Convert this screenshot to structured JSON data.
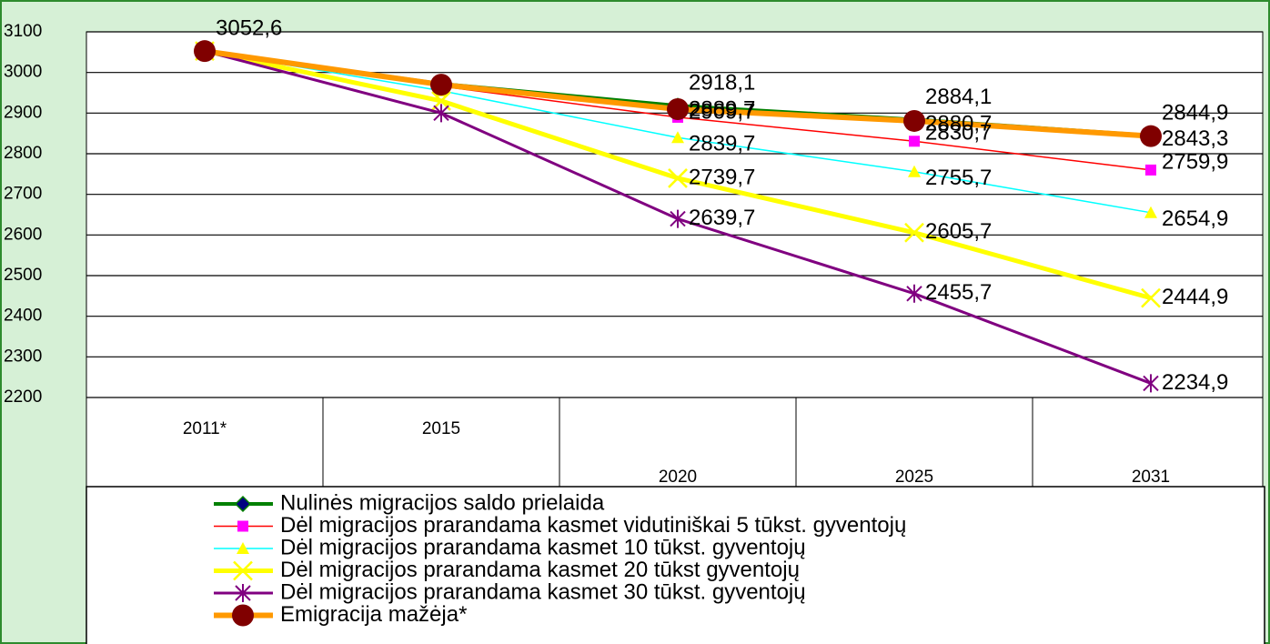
{
  "chart_data": {
    "type": "line",
    "categories": [
      "2011*",
      "2015",
      "2020",
      "2025",
      "2031"
    ],
    "ylim": [
      2200,
      3100
    ],
    "yticks": [
      2200,
      2300,
      2400,
      2500,
      2600,
      2700,
      2800,
      2900,
      3000,
      3100
    ],
    "grid": true,
    "series": [
      {
        "name": "Nulinės migracijos saldo prielaida",
        "color": "#008000",
        "marker": "diamond",
        "marker_color": "#000080",
        "values": [
          3052.6,
          2972,
          2918.1,
          2884.1,
          2844.9
        ],
        "value_labels": [
          "3052,6",
          null,
          "2918,1",
          "2884,1",
          "2844,9"
        ]
      },
      {
        "name": "Dėl migracijos prarandama kasmet vidutiniškai 5 tūkst. gyventojų",
        "color": "#ff0000",
        "marker": "square",
        "marker_color": "#ff00ff",
        "values": [
          3052.6,
          2966,
          2889.7,
          2830.7,
          2759.9
        ],
        "value_labels": [
          null,
          null,
          "2889,7",
          "2830,7",
          "2759,9"
        ]
      },
      {
        "name": "Dėl migracijos prarandama kasmet 10 tūkst. gyventojų",
        "color": "#00ffff",
        "marker": "triangle",
        "marker_color": "#ffff00",
        "values": [
          3052.6,
          2955,
          2839.7,
          2755.7,
          2654.9
        ],
        "value_labels": [
          null,
          null,
          "2839,7",
          "2755,7",
          "2654,9"
        ]
      },
      {
        "name": "Dėl migracijos prarandama kasmet 20 tūkst gyventojų",
        "color": "#ffff00",
        "marker": "x",
        "marker_color": "#ffff00",
        "values": [
          3052.6,
          2930,
          2739.7,
          2605.7,
          2444.9
        ],
        "value_labels": [
          null,
          null,
          "2739,7",
          "2605,7",
          "2444,9"
        ]
      },
      {
        "name": "Dėl migracijos prarandama kasmet 30 tūkst. gyventojų",
        "color": "#800080",
        "marker": "asterisk",
        "marker_color": "#800080",
        "values": [
          3052.6,
          2900,
          2639.7,
          2455.7,
          2234.9
        ],
        "value_labels": [
          null,
          null,
          "2639,7",
          "2455,7",
          "2234,9"
        ]
      },
      {
        "name": "Emigracija mažėja*",
        "color": "#ff9900",
        "marker": "circle",
        "marker_color": "#800000",
        "values": [
          3052.6,
          2970,
          2909.7,
          2880.7,
          2843.3
        ],
        "value_labels": [
          null,
          null,
          "2909,7",
          "2880,7",
          "2843,3"
        ]
      }
    ]
  }
}
